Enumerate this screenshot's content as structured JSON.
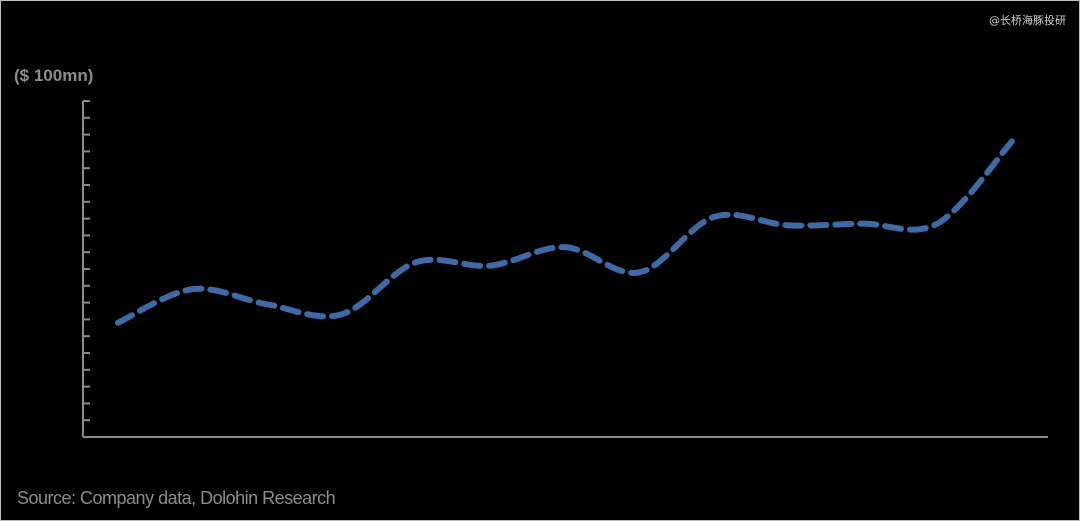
{
  "watermark": "@长桥海豚投研",
  "chart_data": {
    "type": "line",
    "title": "",
    "xlabel": "",
    "ylabel": "($ 100mn)",
    "x": [
      1,
      2,
      3,
      4,
      5,
      6,
      7,
      8,
      9,
      10,
      11,
      12,
      13
    ],
    "series": [
      {
        "values": [
          6.8,
          8.8,
          7.9,
          7.3,
          10.4,
          10.2,
          11.3,
          9.8,
          13.1,
          12.6,
          12.7,
          12.7,
          17.6
        ]
      }
    ],
    "ylim": [
      0,
      20
    ],
    "y_tick_count": 20,
    "grid": false,
    "line_style": "dashed",
    "colors": {
      "line": "#3e6aa6",
      "axis": "#8c8c8c",
      "background": "#000000"
    }
  },
  "source": "Source:  Company data, Dolohin Research"
}
